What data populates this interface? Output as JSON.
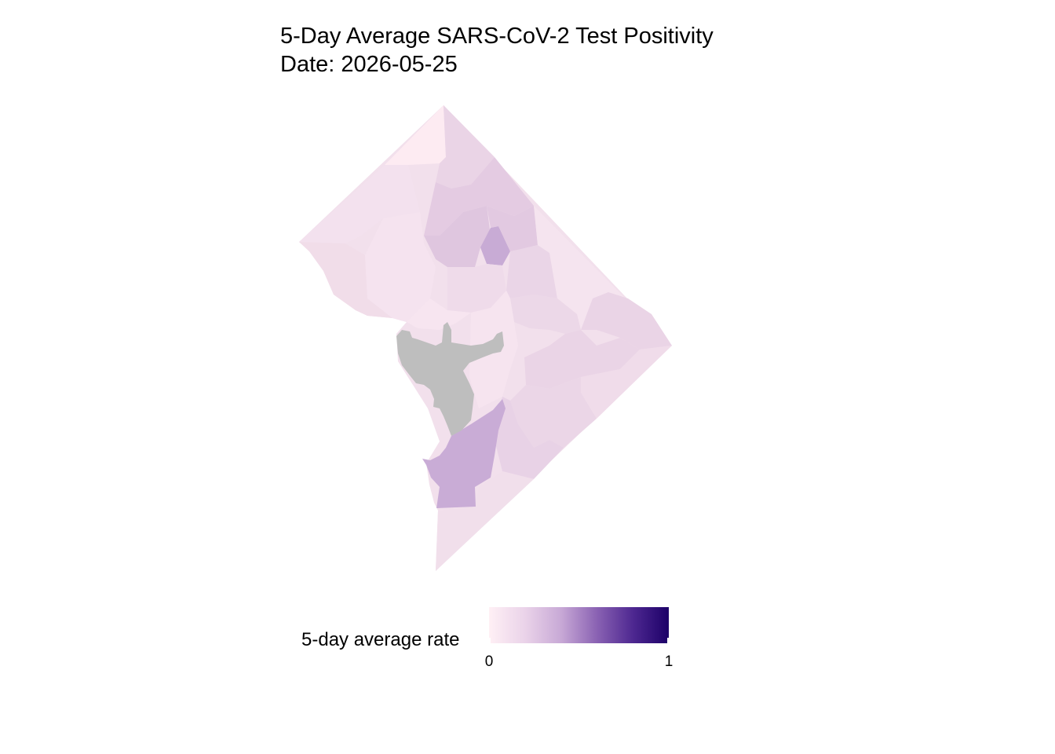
{
  "title_line1": "5-Day Average SARS-CoV-2 Test Positivity",
  "title_line2": "Date: 2026-05-25",
  "legend": {
    "title": "5-day average rate",
    "min_label": "0",
    "max_label": "1",
    "low_color": "#fff0f5",
    "high_color": "#1c0068"
  },
  "map": {
    "missing_color": "#bebebe",
    "regions_by_rate": [
      0.03,
      0.05,
      0.06,
      0.08,
      0.1,
      0.12,
      0.13,
      0.18,
      0.2,
      0.24
    ]
  }
}
